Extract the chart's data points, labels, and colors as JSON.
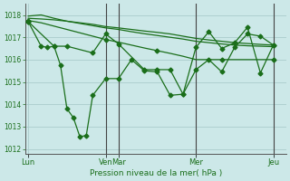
{
  "bg_color": "#cce8e8",
  "grid_color": "#aacccc",
  "line_color": "#1a6e1a",
  "ylabel": "Pression niveau de la mer( hPa )",
  "ylim": [
    1011.8,
    1018.5
  ],
  "yticks": [
    1012,
    1013,
    1014,
    1015,
    1016,
    1017,
    1018
  ],
  "xtick_labels": [
    "Lun",
    "Ven",
    "Mar",
    "Mer",
    "Jeu"
  ],
  "xtick_positions": [
    0,
    24,
    28,
    52,
    76
  ],
  "xlim": [
    -1,
    80
  ],
  "vline_positions": [
    24,
    28,
    52,
    76
  ],
  "smooth1_x": [
    0,
    4,
    8,
    12,
    16,
    20,
    24,
    28,
    32,
    36,
    40,
    44,
    48,
    52,
    56,
    60,
    64,
    68,
    72,
    76
  ],
  "smooth1_y": [
    1017.85,
    1017.82,
    1017.78,
    1017.72,
    1017.65,
    1017.58,
    1017.48,
    1017.42,
    1017.35,
    1017.28,
    1017.22,
    1017.15,
    1017.05,
    1016.95,
    1016.88,
    1016.82,
    1016.76,
    1016.72,
    1016.68,
    1016.65
  ],
  "smooth2_x": [
    0,
    4,
    8,
    12,
    16,
    20,
    24,
    28,
    32,
    36,
    40,
    44,
    48,
    52,
    56,
    60,
    64,
    68,
    72,
    76
  ],
  "smooth2_y": [
    1017.95,
    1018.0,
    1017.85,
    1017.72,
    1017.62,
    1017.52,
    1017.42,
    1017.35,
    1017.25,
    1017.16,
    1017.08,
    1017.0,
    1016.92,
    1016.82,
    1016.76,
    1016.7,
    1016.65,
    1016.62,
    1016.6,
    1016.58
  ],
  "smooth3_x": [
    0,
    4,
    8,
    12,
    16,
    20,
    24,
    28,
    32,
    36,
    40,
    44,
    48,
    52,
    56,
    60,
    64,
    68,
    72,
    76
  ],
  "smooth3_y": [
    1017.75,
    1017.65,
    1017.5,
    1017.35,
    1017.2,
    1017.05,
    1016.9,
    1016.78,
    1016.65,
    1016.52,
    1016.4,
    1016.28,
    1016.15,
    1016.0,
    1016.0,
    1016.0,
    1016.0,
    1016.0,
    1016.0,
    1016.0
  ],
  "jagged1_x": [
    0,
    4,
    6,
    8,
    10,
    12,
    14,
    16,
    18,
    20,
    24,
    28,
    32,
    36,
    40,
    44,
    48,
    52,
    56,
    60,
    64,
    68,
    72,
    76
  ],
  "jagged1_y": [
    1017.7,
    1016.6,
    1016.55,
    1016.6,
    1015.75,
    1013.8,
    1013.4,
    1012.55,
    1012.6,
    1014.4,
    1015.15,
    1015.15,
    1016.0,
    1015.5,
    1015.45,
    1014.4,
    1014.45,
    1015.55,
    1016.0,
    1015.45,
    1016.55,
    1017.15,
    1017.05,
    1016.65
  ],
  "jagged2_x": [
    0,
    8,
    12,
    20,
    24,
    28,
    36,
    40,
    44,
    48,
    52,
    56,
    60,
    64,
    68,
    72,
    76
  ],
  "jagged2_y": [
    1017.7,
    1016.6,
    1016.6,
    1016.3,
    1017.15,
    1016.7,
    1015.55,
    1015.55,
    1015.55,
    1014.45,
    1016.55,
    1017.25,
    1016.5,
    1016.75,
    1017.45,
    1015.4,
    1016.65
  ]
}
